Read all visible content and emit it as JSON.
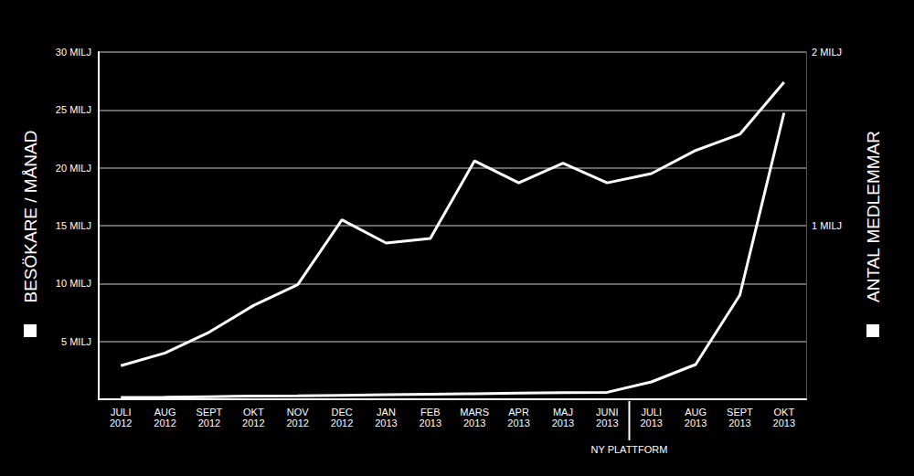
{
  "chart_data": {
    "type": "line",
    "ylabel": "BESÖKARE / MÅNAD",
    "y2label": "ANTAL MEDLEMMAR",
    "categories": [
      "JULI 2012",
      "AUG 2012",
      "SEPT 2012",
      "OKT 2012",
      "NOV 2012",
      "DEC 2012",
      "JAN 2013",
      "FEB 2013",
      "MARS 2013",
      "APR 2013",
      "MAJ 2013",
      "JUNI 2013",
      "JULI 2013",
      "AUG 2013",
      "SEPT 2013",
      "OKT 2013"
    ],
    "series": [
      {
        "color": "#ffffff",
        "values": [
          2.9,
          4.0,
          5.8,
          8.1,
          9.9,
          15.5,
          13.5,
          13.9,
          20.6,
          18.7,
          20.4,
          18.7,
          19.5,
          21.5,
          22.9,
          27.4
        ]
      },
      {
        "color": "#ffffff",
        "axis": "y2",
        "values": [
          0.01,
          0.012,
          0.015,
          0.018,
          0.02,
          0.023,
          0.026,
          0.029,
          0.032,
          0.035,
          0.038,
          0.04,
          0.1,
          0.2,
          0.6,
          1.65
        ]
      }
    ],
    "ylim": [
      0,
      30
    ],
    "yticks": [
      {
        "value": 5,
        "label": "5 MILJ"
      },
      {
        "value": 10,
        "label": "10 MILJ"
      },
      {
        "value": 15,
        "label": "15 MILJ"
      },
      {
        "value": 20,
        "label": "20 MILJ"
      },
      {
        "value": 25,
        "label": "25 MILJ"
      },
      {
        "value": 30,
        "label": "30 MILJ"
      }
    ],
    "y2lim": [
      0,
      2
    ],
    "y2ticks": [
      {
        "value": 1,
        "label": "1 MILJ"
      },
      {
        "value": 2,
        "label": "2 MILJ"
      }
    ],
    "grid": true,
    "annotations": [
      {
        "text": "NY PLATTFORM",
        "between": [
          "JUNI 2013",
          "JULI 2013"
        ]
      }
    ]
  }
}
